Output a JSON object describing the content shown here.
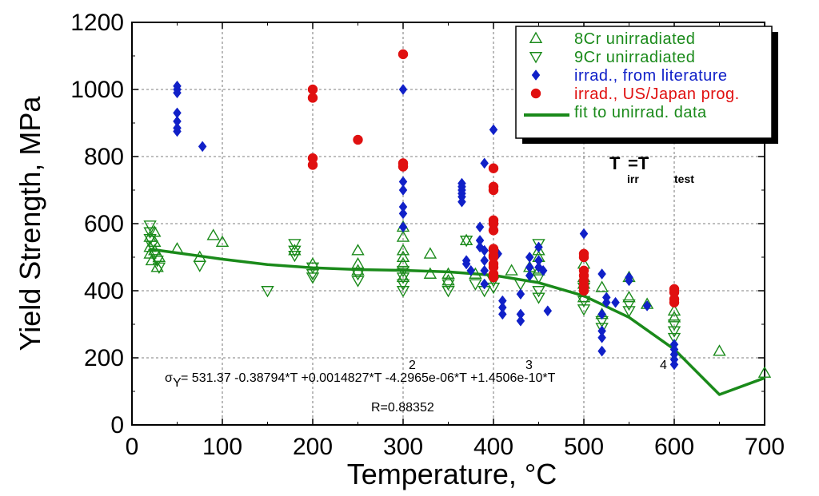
{
  "chart_data": {
    "type": "scatter",
    "xlabel": "Temperature, °C",
    "ylabel": "Yield Strength, MPa",
    "xlim": [
      0,
      700
    ],
    "ylim": [
      0,
      1200
    ],
    "xticks": [
      0,
      100,
      200,
      300,
      400,
      500,
      600,
      700
    ],
    "yticks": [
      0,
      200,
      400,
      600,
      800,
      1000,
      1200
    ],
    "grid": true,
    "legend_position": "top-right",
    "colors": {
      "green": "#1a8a1a",
      "blue": "#1020c8",
      "red": "#e01010",
      "fit": "#1a8a1a"
    },
    "annotations": {
      "t_irr_main": "T",
      "t_irr_sub": "irr",
      "t_eq": "=T",
      "t_test_sub": "test",
      "sigma_symbol": "σ",
      "sigma_sub": "Y",
      "formula_line": "=    531.37    -0.38794*T    +0.0014827*T    -4.2965e-06*T    +1.4506e-10*T",
      "exp2": "2",
      "exp3": "3",
      "exp4": "4",
      "r_value": "R=0.88352"
    },
    "series": [
      {
        "name": "8Cr  unirradiated",
        "marker": "triangle-up",
        "color": "#1a8a1a",
        "points": [
          [
            20,
            560
          ],
          [
            20,
            530
          ],
          [
            20,
            510
          ],
          [
            22,
            490
          ],
          [
            25,
            545
          ],
          [
            25,
            575
          ],
          [
            25,
            520
          ],
          [
            28,
            470
          ],
          [
            30,
            500
          ],
          [
            50,
            525
          ],
          [
            75,
            500
          ],
          [
            90,
            565
          ],
          [
            100,
            545
          ],
          [
            180,
            520
          ],
          [
            200,
            480
          ],
          [
            250,
            520
          ],
          [
            250,
            480
          ],
          [
            250,
            460
          ],
          [
            300,
            590
          ],
          [
            300,
            560
          ],
          [
            300,
            520
          ],
          [
            300,
            500
          ],
          [
            300,
            480
          ],
          [
            300,
            440
          ],
          [
            330,
            510
          ],
          [
            330,
            450
          ],
          [
            350,
            450
          ],
          [
            350,
            430
          ],
          [
            370,
            550
          ],
          [
            380,
            450
          ],
          [
            420,
            460
          ],
          [
            440,
            470
          ],
          [
            450,
            520
          ],
          [
            450,
            500
          ],
          [
            450,
            460
          ],
          [
            500,
            480
          ],
          [
            500,
            440
          ],
          [
            500,
            420
          ],
          [
            500,
            380
          ],
          [
            520,
            410
          ],
          [
            520,
            330
          ],
          [
            550,
            440
          ],
          [
            550,
            380
          ],
          [
            570,
            360
          ],
          [
            600,
            340
          ],
          [
            600,
            320
          ],
          [
            650,
            220
          ],
          [
            700,
            155
          ]
        ]
      },
      {
        "name": "9Cr  unirradiated",
        "marker": "triangle-down",
        "color": "#1a8a1a",
        "points": [
          [
            20,
            595
          ],
          [
            20,
            575
          ],
          [
            20,
            555
          ],
          [
            22,
            535
          ],
          [
            25,
            510
          ],
          [
            28,
            490
          ],
          [
            30,
            470
          ],
          [
            75,
            475
          ],
          [
            150,
            400
          ],
          [
            180,
            540
          ],
          [
            180,
            520
          ],
          [
            180,
            505
          ],
          [
            200,
            470
          ],
          [
            200,
            450
          ],
          [
            200,
            440
          ],
          [
            250,
            430
          ],
          [
            250,
            450
          ],
          [
            300,
            460
          ],
          [
            300,
            440
          ],
          [
            300,
            420
          ],
          [
            300,
            400
          ],
          [
            350,
            420
          ],
          [
            350,
            400
          ],
          [
            370,
            550
          ],
          [
            380,
            420
          ],
          [
            390,
            400
          ],
          [
            400,
            430
          ],
          [
            400,
            410
          ],
          [
            430,
            420
          ],
          [
            450,
            540
          ],
          [
            450,
            440
          ],
          [
            450,
            400
          ],
          [
            450,
            380
          ],
          [
            500,
            410
          ],
          [
            500,
            370
          ],
          [
            500,
            345
          ],
          [
            520,
            310
          ],
          [
            520,
            290
          ],
          [
            550,
            360
          ],
          [
            550,
            340
          ],
          [
            600,
            300
          ],
          [
            600,
            280
          ],
          [
            600,
            260
          ]
        ]
      },
      {
        "name": "irrad.,  from  literature",
        "marker": "diamond",
        "color": "#1020c8",
        "points": [
          [
            50,
            1010
          ],
          [
            50,
            1000
          ],
          [
            50,
            990
          ],
          [
            50,
            930
          ],
          [
            50,
            905
          ],
          [
            50,
            885
          ],
          [
            50,
            875
          ],
          [
            78,
            830
          ],
          [
            300,
            1000
          ],
          [
            300,
            770
          ],
          [
            300,
            725
          ],
          [
            300,
            700
          ],
          [
            300,
            650
          ],
          [
            300,
            630
          ],
          [
            300,
            590
          ],
          [
            365,
            720
          ],
          [
            365,
            710
          ],
          [
            365,
            700
          ],
          [
            365,
            690
          ],
          [
            365,
            680
          ],
          [
            365,
            665
          ],
          [
            370,
            490
          ],
          [
            370,
            480
          ],
          [
            375,
            460
          ],
          [
            385,
            590
          ],
          [
            385,
            550
          ],
          [
            385,
            530
          ],
          [
            390,
            780
          ],
          [
            390,
            520
          ],
          [
            390,
            490
          ],
          [
            390,
            460
          ],
          [
            390,
            420
          ],
          [
            400,
            880
          ],
          [
            400,
            590
          ],
          [
            400,
            520
          ],
          [
            400,
            500
          ],
          [
            400,
            450
          ],
          [
            400,
            440
          ],
          [
            405,
            510
          ],
          [
            410,
            370
          ],
          [
            410,
            350
          ],
          [
            410,
            330
          ],
          [
            430,
            390
          ],
          [
            430,
            330
          ],
          [
            430,
            310
          ],
          [
            440,
            500
          ],
          [
            440,
            470
          ],
          [
            440,
            445
          ],
          [
            450,
            530
          ],
          [
            450,
            490
          ],
          [
            450,
            470
          ],
          [
            455,
            460
          ],
          [
            460,
            340
          ],
          [
            500,
            570
          ],
          [
            500,
            500
          ],
          [
            520,
            450
          ],
          [
            520,
            330
          ],
          [
            520,
            280
          ],
          [
            520,
            260
          ],
          [
            520,
            220
          ],
          [
            525,
            380
          ],
          [
            525,
            365
          ],
          [
            535,
            365
          ],
          [
            550,
            440
          ],
          [
            550,
            430
          ],
          [
            570,
            355
          ],
          [
            600,
            380
          ],
          [
            600,
            370
          ],
          [
            600,
            240
          ],
          [
            600,
            225
          ],
          [
            600,
            210
          ],
          [
            600,
            195
          ],
          [
            600,
            180
          ]
        ]
      },
      {
        "name": "irrad.,  US/Japan  prog.",
        "marker": "circle",
        "color": "#e01010",
        "points": [
          [
            200,
            1000
          ],
          [
            200,
            975
          ],
          [
            200,
            795
          ],
          [
            200,
            775
          ],
          [
            250,
            850
          ],
          [
            300,
            1105
          ],
          [
            300,
            780
          ],
          [
            300,
            770
          ],
          [
            400,
            765
          ],
          [
            400,
            710
          ],
          [
            400,
            700
          ],
          [
            400,
            610
          ],
          [
            400,
            600
          ],
          [
            400,
            580
          ],
          [
            400,
            525
          ],
          [
            400,
            520
          ],
          [
            400,
            505
          ],
          [
            400,
            500
          ],
          [
            400,
            480
          ],
          [
            400,
            470
          ],
          [
            400,
            450
          ],
          [
            400,
            440
          ],
          [
            500,
            510
          ],
          [
            500,
            500
          ],
          [
            500,
            460
          ],
          [
            500,
            445
          ],
          [
            500,
            430
          ],
          [
            500,
            415
          ],
          [
            500,
            410
          ],
          [
            500,
            400
          ],
          [
            600,
            405
          ],
          [
            600,
            395
          ],
          [
            600,
            375
          ],
          [
            600,
            365
          ]
        ]
      },
      {
        "name": "fit  to  unirrad.  data",
        "marker": "line",
        "color": "#1a8a1a",
        "points": [
          [
            20,
            523.9
          ],
          [
            50,
            512.8
          ],
          [
            100,
            494.1
          ],
          [
            150,
            478.1
          ],
          [
            200,
            468.3
          ],
          [
            250,
            463.1
          ],
          [
            300,
            460.6
          ],
          [
            350,
            456.3
          ],
          [
            400,
            446.1
          ],
          [
            450,
            424.1
          ],
          [
            500,
            384.7
          ],
          [
            550,
            320.6
          ],
          [
            600,
            225.4
          ],
          [
            650,
            90.4
          ],
          [
            700,
            140
          ]
        ]
      }
    ]
  }
}
